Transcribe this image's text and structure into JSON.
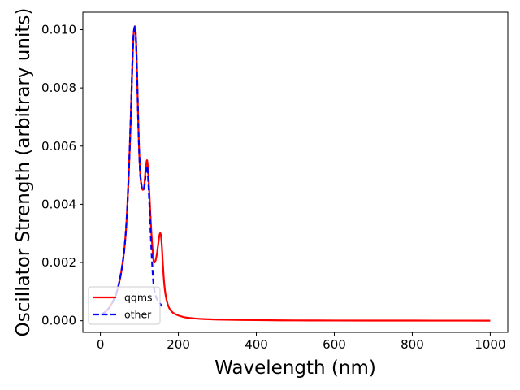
{
  "chart_data": {
    "type": "line",
    "xlabel": "Wavelength (nm)",
    "ylabel": "Oscillator Strength (arbitrary units)",
    "xlim": [
      -45,
      1045
    ],
    "ylim": [
      -0.0004,
      0.0106
    ],
    "xticks": [
      0,
      200,
      400,
      600,
      800,
      1000
    ],
    "xtick_labels": [
      "0",
      "200",
      "400",
      "600",
      "800",
      "1000"
    ],
    "yticks": [
      0.0,
      0.002,
      0.004,
      0.006,
      0.008,
      0.01
    ],
    "ytick_labels": [
      "0.000",
      "0.002",
      "0.004",
      "0.006",
      "0.008",
      "0.010"
    ],
    "grid": false,
    "legend_position": "lower-left",
    "series": [
      {
        "name": "qqms",
        "color": "#ff0000",
        "style": "solid",
        "x": [
          0,
          20,
          40,
          55,
          65,
          72,
          78,
          82,
          85,
          88,
          90,
          92,
          95,
          98,
          102,
          106,
          110,
          113,
          116,
          119,
          121,
          124,
          127,
          130,
          133,
          136,
          139,
          142,
          145,
          148,
          151,
          154,
          157,
          160,
          163,
          166,
          170,
          175,
          180,
          185,
          190,
          200,
          210,
          220,
          240,
          260,
          280,
          300,
          350,
          400,
          500,
          600,
          700,
          800,
          900,
          1000
        ],
        "y": [
          0.0002,
          0.0004,
          0.0009,
          0.0018,
          0.003,
          0.0048,
          0.007,
          0.0088,
          0.0098,
          0.0101,
          0.01,
          0.0094,
          0.008,
          0.0064,
          0.0051,
          0.0046,
          0.0045,
          0.0047,
          0.0052,
          0.0055,
          0.0054,
          0.0048,
          0.004,
          0.0032,
          0.0026,
          0.0021,
          0.002,
          0.0021,
          0.0023,
          0.0026,
          0.0029,
          0.003,
          0.0027,
          0.002,
          0.0014,
          0.001,
          0.0007,
          0.00048,
          0.00036,
          0.00029,
          0.00024,
          0.00018,
          0.00014,
          0.00011,
          8e-05,
          6e-05,
          5e-05,
          4e-05,
          3e-05,
          2e-05,
          1e-05,
          7e-06,
          5e-06,
          4e-06,
          3e-06,
          2e-06
        ]
      },
      {
        "name": "other",
        "color": "#0000ff",
        "style": "dashed",
        "x": [
          0,
          20,
          40,
          55,
          65,
          72,
          78,
          82,
          85,
          88,
          90,
          92,
          95,
          98,
          102,
          106,
          110,
          113,
          116,
          119,
          121,
          124,
          127,
          130,
          133,
          136,
          139,
          142,
          145,
          148,
          151,
          154,
          157
        ],
        "y": [
          0.0002,
          0.0004,
          0.0009,
          0.0018,
          0.003,
          0.0048,
          0.007,
          0.0088,
          0.0098,
          0.0101,
          0.01,
          0.0094,
          0.008,
          0.0064,
          0.0051,
          0.0046,
          0.0045,
          0.0046,
          0.005,
          0.0053,
          0.0052,
          0.0045,
          0.0036,
          0.0027,
          0.0019,
          0.0013,
          0.001,
          0.00085,
          0.00075,
          0.00068,
          0.00062,
          0.00057,
          0.0005
        ]
      }
    ]
  }
}
